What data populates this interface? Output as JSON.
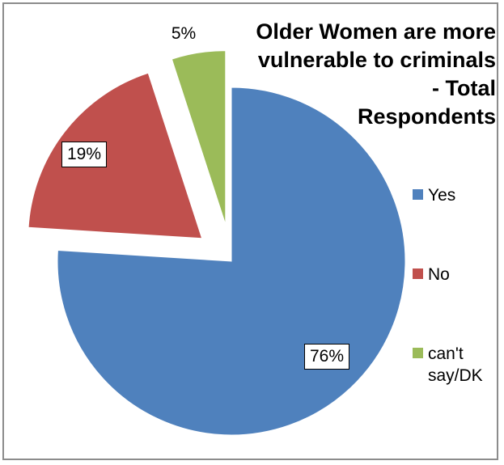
{
  "chart_data": {
    "type": "pie",
    "title": "Older Women are more vulnerable to criminals - Total Respondents",
    "title_lines": [
      "Older Women are more",
      "vulnerable to criminals",
      "- Total",
      "Respondents"
    ],
    "categories": [
      "Yes",
      "No",
      "can't say/DK"
    ],
    "values": [
      76,
      19,
      5
    ],
    "data_labels": [
      "76%",
      "19%",
      "5%"
    ],
    "colors": [
      "#4f81bd",
      "#c0504d",
      "#9bbb59"
    ],
    "exploded": true,
    "legend_position": "right"
  },
  "legend": {
    "items": [
      {
        "label_lines": [
          "Yes"
        ],
        "color": "#4f81bd"
      },
      {
        "label_lines": [
          "No"
        ],
        "color": "#c0504d"
      },
      {
        "label_lines": [
          "can't",
          "say/DK"
        ],
        "color": "#9bbb59"
      }
    ]
  }
}
